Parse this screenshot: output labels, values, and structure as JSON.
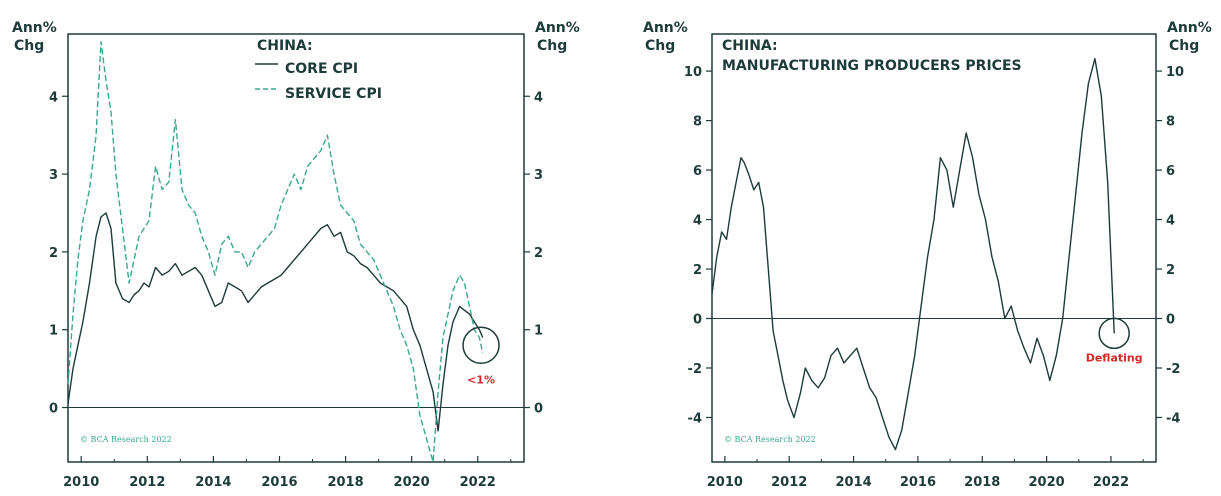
{
  "chart_data": [
    {
      "type": "line",
      "title": "CHINA:",
      "ylabel_left": "Ann% Chg",
      "ylabel_right": "Ann% Chg",
      "xlim": [
        2009.6,
        2023.4
      ],
      "ylim": [
        -0.7,
        4.8
      ],
      "yticks": [
        0,
        1,
        2,
        3,
        4
      ],
      "xticks": [
        2010,
        2012,
        2014,
        2016,
        2018,
        2020,
        2022
      ],
      "zero_line": true,
      "grid": false,
      "legend_position": "top-center",
      "copyright": "© BCA Research 2022",
      "annotation": {
        "text": "<1%",
        "x": 2022.1,
        "y": 0.8,
        "color": "#d62a2a"
      },
      "series": [
        {
          "name": "CORE CPI",
          "style": "solid",
          "color": "#1d3b39",
          "x": [
            2009.6,
            2009.75,
            2009.9,
            2010.05,
            2010.25,
            2010.45,
            2010.6,
            2010.75,
            2010.9,
            2011.05,
            2011.25,
            2011.45,
            2011.6,
            2011.75,
            2011.9,
            2012.05,
            2012.25,
            2012.45,
            2012.65,
            2012.85,
            2013.05,
            2013.25,
            2013.45,
            2013.65,
            2013.85,
            2014.05,
            2014.25,
            2014.45,
            2014.65,
            2014.85,
            2015.05,
            2015.25,
            2015.45,
            2015.65,
            2015.85,
            2016.05,
            2016.25,
            2016.45,
            2016.65,
            2016.85,
            2017.05,
            2017.25,
            2017.45,
            2017.65,
            2017.85,
            2018.05,
            2018.25,
            2018.45,
            2018.65,
            2018.85,
            2019.05,
            2019.25,
            2019.45,
            2019.65,
            2019.85,
            2020.05,
            2020.25,
            2020.45,
            2020.65,
            2020.8,
            2020.95,
            2021.1,
            2021.25,
            2021.45,
            2021.6,
            2021.75,
            2021.9,
            2022.05,
            2022.15
          ],
          "values": [
            0.05,
            0.5,
            0.8,
            1.1,
            1.6,
            2.2,
            2.45,
            2.5,
            2.3,
            1.6,
            1.4,
            1.35,
            1.45,
            1.5,
            1.6,
            1.55,
            1.8,
            1.7,
            1.75,
            1.85,
            1.7,
            1.75,
            1.8,
            1.7,
            1.5,
            1.3,
            1.35,
            1.6,
            1.55,
            1.5,
            1.35,
            1.45,
            1.55,
            1.6,
            1.65,
            1.7,
            1.8,
            1.9,
            2.0,
            2.1,
            2.2,
            2.3,
            2.35,
            2.2,
            2.25,
            2.0,
            1.95,
            1.85,
            1.8,
            1.7,
            1.6,
            1.55,
            1.5,
            1.4,
            1.3,
            1.0,
            0.8,
            0.5,
            0.2,
            -0.3,
            0.3,
            0.8,
            1.1,
            1.3,
            1.25,
            1.2,
            1.1,
            1.0,
            0.9
          ]
        },
        {
          "name": "SERVICE CPI",
          "style": "dashed",
          "color": "#3aa88f",
          "x": [
            2009.6,
            2009.75,
            2009.9,
            2010.05,
            2010.25,
            2010.45,
            2010.6,
            2010.75,
            2010.9,
            2011.05,
            2011.25,
            2011.45,
            2011.6,
            2011.75,
            2011.9,
            2012.05,
            2012.25,
            2012.45,
            2012.65,
            2012.85,
            2013.05,
            2013.25,
            2013.45,
            2013.65,
            2013.85,
            2014.05,
            2014.25,
            2014.45,
            2014.65,
            2014.85,
            2015.05,
            2015.25,
            2015.45,
            2015.65,
            2015.85,
            2016.05,
            2016.25,
            2016.45,
            2016.65,
            2016.85,
            2017.05,
            2017.25,
            2017.45,
            2017.65,
            2017.85,
            2018.05,
            2018.25,
            2018.45,
            2018.65,
            2018.85,
            2019.05,
            2019.25,
            2019.45,
            2019.65,
            2019.85,
            2020.05,
            2020.25,
            2020.45,
            2020.65,
            2020.8,
            2020.95,
            2021.1,
            2021.25,
            2021.45,
            2021.6,
            2021.75,
            2021.9,
            2022.05,
            2022.15
          ],
          "values": [
            0.3,
            1.2,
            1.9,
            2.4,
            2.8,
            3.5,
            4.7,
            4.2,
            3.8,
            3.0,
            2.3,
            1.6,
            1.9,
            2.2,
            2.3,
            2.4,
            3.1,
            2.8,
            2.9,
            3.7,
            2.8,
            2.6,
            2.5,
            2.2,
            2.0,
            1.7,
            2.1,
            2.2,
            2.0,
            2.0,
            1.8,
            2.0,
            2.1,
            2.2,
            2.3,
            2.6,
            2.8,
            3.0,
            2.8,
            3.1,
            3.2,
            3.3,
            3.5,
            3.0,
            2.6,
            2.5,
            2.4,
            2.1,
            2.0,
            1.9,
            1.7,
            1.5,
            1.3,
            1.0,
            0.8,
            0.5,
            -0.1,
            -0.4,
            -0.7,
            0.2,
            0.9,
            1.2,
            1.5,
            1.7,
            1.6,
            1.3,
            1.0,
            0.9,
            0.7
          ]
        }
      ]
    },
    {
      "type": "line",
      "title": "CHINA:",
      "subtitle": "MANUFACTURING PRODUCERS PRICES",
      "ylabel_left": "Ann% Chg",
      "ylabel_right": "Ann% Chg",
      "xlim": [
        2009.6,
        2023.4
      ],
      "ylim": [
        -5.8,
        11.5
      ],
      "yticks": [
        -4,
        -2,
        0,
        2,
        4,
        6,
        8,
        10
      ],
      "xticks": [
        2010,
        2012,
        2014,
        2016,
        2018,
        2020,
        2022
      ],
      "zero_line": true,
      "grid": false,
      "copyright": "© BCA Research 2022",
      "annotation": {
        "text": "Deflating",
        "x": 2022.1,
        "y": -0.6,
        "color": "#d62a2a"
      },
      "series": [
        {
          "name": "",
          "style": "solid",
          "color": "#1d3b39",
          "x": [
            2009.6,
            2009.75,
            2009.9,
            2010.05,
            2010.2,
            2010.35,
            2010.5,
            2010.6,
            2010.75,
            2010.9,
            2011.05,
            2011.2,
            2011.35,
            2011.5,
            2011.65,
            2011.8,
            2011.95,
            2012.15,
            2012.35,
            2012.5,
            2012.7,
            2012.9,
            2013.1,
            2013.3,
            2013.5,
            2013.7,
            2013.9,
            2014.1,
            2014.3,
            2014.5,
            2014.7,
            2014.9,
            2015.1,
            2015.3,
            2015.5,
            2015.7,
            2015.9,
            2016.1,
            2016.3,
            2016.5,
            2016.7,
            2016.9,
            2017.1,
            2017.3,
            2017.5,
            2017.7,
            2017.9,
            2018.1,
            2018.3,
            2018.5,
            2018.7,
            2018.9,
            2019.1,
            2019.3,
            2019.5,
            2019.7,
            2019.9,
            2020.1,
            2020.3,
            2020.5,
            2020.7,
            2020.9,
            2021.1,
            2021.3,
            2021.5,
            2021.7,
            2021.9,
            2022.1
          ],
          "values": [
            1.0,
            2.5,
            3.5,
            3.2,
            4.5,
            5.5,
            6.5,
            6.3,
            5.8,
            5.2,
            5.5,
            4.5,
            2.0,
            -0.5,
            -1.5,
            -2.5,
            -3.3,
            -4.0,
            -3.0,
            -2.0,
            -2.5,
            -2.8,
            -2.4,
            -1.5,
            -1.2,
            -1.8,
            -1.5,
            -1.2,
            -2.0,
            -2.8,
            -3.2,
            -4.0,
            -4.8,
            -5.3,
            -4.5,
            -3.0,
            -1.5,
            0.5,
            2.5,
            4.0,
            6.5,
            6.0,
            4.5,
            6.0,
            7.5,
            6.5,
            5.0,
            4.0,
            2.5,
            1.5,
            0.0,
            0.5,
            -0.5,
            -1.2,
            -1.8,
            -0.8,
            -1.5,
            -2.5,
            -1.5,
            0.0,
            2.5,
            5.0,
            7.5,
            9.5,
            10.5,
            9.0,
            5.5,
            -0.6
          ]
        }
      ]
    }
  ],
  "panels": [
    {
      "ylabel_left": [
        "Ann%",
        "Chg"
      ],
      "ylabel_right": [
        "Ann%",
        "Chg"
      ],
      "title_line1": "CHINA:",
      "legend": [
        {
          "label": "CORE CPI",
          "style": "solid"
        },
        {
          "label": "SERVICE CPI",
          "style": "dashed"
        }
      ],
      "copyright": "© BCA Research 2022",
      "annotation_text": "<1%"
    },
    {
      "ylabel_left": [
        "Ann%",
        "Chg"
      ],
      "ylabel_right": [
        "Ann%",
        "Chg"
      ],
      "title_line1": "CHINA:",
      "title_line2": "MANUFACTURING PRODUCERS PRICES",
      "copyright": "© BCA Research 2022",
      "annotation_text": "Deflating"
    }
  ],
  "colors": {
    "ink": "#1d3b39",
    "teal": "#3aa88f",
    "red": "#d62a2a"
  }
}
